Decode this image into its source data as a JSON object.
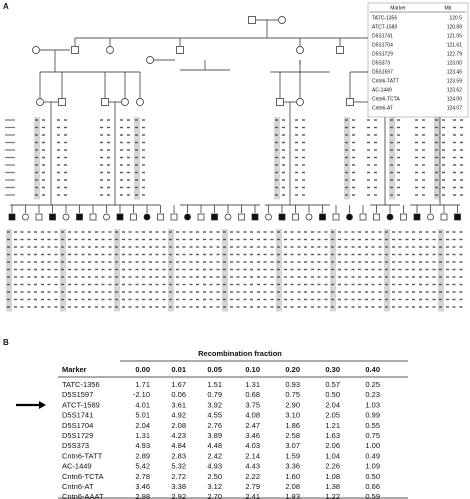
{
  "panel_a": {
    "label": "A",
    "marker_table": {
      "header": [
        "Marker",
        "Mb"
      ],
      "rows": [
        [
          "TATC-1356",
          "120.5"
        ],
        [
          "ATCT-1589",
          "120.89"
        ],
        [
          "D5S1741",
          "121.05"
        ],
        [
          "D5S1704",
          "121.61"
        ],
        [
          "D5S1729",
          "122.79"
        ],
        [
          "D5S373",
          "123.00"
        ],
        [
          "D5S1597",
          "123.45"
        ],
        [
          "Cntn6-TATT",
          "123.59"
        ],
        [
          "AC-1449",
          "123.62"
        ],
        [
          "Cntn6-TCTA",
          "124.00"
        ],
        [
          "Cntn6-AT",
          "124.07"
        ]
      ]
    }
  },
  "panel_b": {
    "label": "B",
    "title": "Recombination fraction",
    "header": [
      "Marker",
      "0.00",
      "0.01",
      "0.05",
      "0.10",
      "0.20",
      "0.30",
      "0.40"
    ],
    "rows": [
      [
        "TATC-1356",
        "1.71",
        "1.67",
        "1.51",
        "1.31",
        "0.93",
        "0.57",
        "0.25"
      ],
      [
        "D5S1597",
        "-2.10",
        "0.06",
        "0.79",
        "0.68",
        "0.75",
        "0.50",
        "0.23"
      ],
      [
        "ATCT-1589",
        "4.01",
        "3.61",
        "3.92",
        "3.75",
        "2.90",
        "2.04",
        "1.03"
      ],
      [
        "D5S1741",
        "5.01",
        "4.92",
        "4.55",
        "4.08",
        "3.10",
        "2.05",
        "0.99"
      ],
      [
        "D5S1704",
        "2.04",
        "2.08",
        "2.76",
        "2.47",
        "1.86",
        "1.21",
        "0.55"
      ],
      [
        "D5S1729",
        "1.31",
        "4.23",
        "3.89",
        "3.46",
        "2.58",
        "1.63",
        "0.75"
      ],
      [
        "D5S373",
        "4.93",
        "4.84",
        "4.48",
        "4.03",
        "3.07",
        "2.06",
        "1.00"
      ],
      [
        "Cntn6-TATT",
        "2.89",
        "2.83",
        "2.42",
        "2.14",
        "1.59",
        "1.04",
        "0.49"
      ],
      [
        "AC-1449",
        "5.42",
        "5.32",
        "4.93",
        "4.43",
        "3.36",
        "2.26",
        "1.09"
      ],
      [
        "Cntn6-TCTA",
        "2.78",
        "2.72",
        "2.50",
        "2.22",
        "1.60",
        "1.08",
        "0.50"
      ],
      [
        "Cntn6-AT",
        "3.46",
        "3.38",
        "3.12",
        "2.79",
        "2.08",
        "1.38",
        "0.66"
      ],
      [
        "Cntn6-AAAT",
        "2.98",
        "2.92",
        "2.70",
        "2.41",
        "1.83",
        "1.22",
        "0.59"
      ]
    ]
  }
}
